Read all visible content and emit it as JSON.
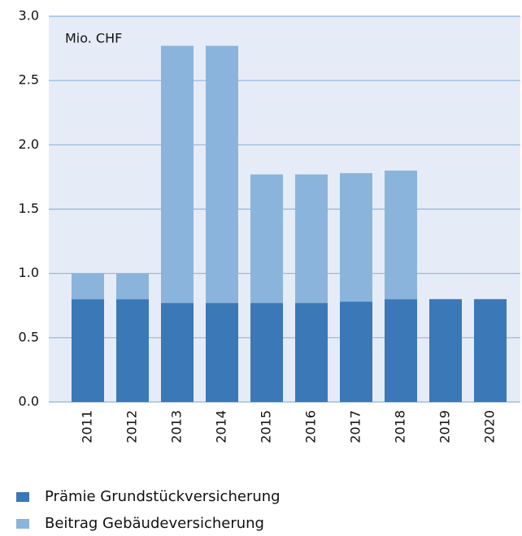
{
  "chart_data": {
    "type": "stacked_bar",
    "annotation": "Mio. CHF",
    "categories": [
      "2011",
      "2012",
      "2013",
      "2014",
      "2015",
      "2016",
      "2017",
      "2018",
      "2019",
      "2020"
    ],
    "series": [
      {
        "name": "Prämie Grundstückversicherung",
        "color": "#3a78b8",
        "values": [
          0.8,
          0.8,
          0.77,
          0.77,
          0.77,
          0.77,
          0.78,
          0.8,
          0.8,
          0.8
        ]
      },
      {
        "name": "Beitrag Gebäudeversicherung",
        "color": "#8ab4dc",
        "values": [
          0.2,
          0.2,
          2.0,
          2.0,
          1.0,
          1.0,
          1.0,
          1.0,
          0,
          0
        ]
      }
    ],
    "ylim": [
      0,
      3
    ],
    "yticks": [
      {
        "value": 0,
        "label": "0.0"
      },
      0.5,
      {
        "value": 1,
        "label": "1.0"
      },
      1.5,
      {
        "value": 2,
        "label": "2.0"
      },
      2.5,
      {
        "value": 3,
        "label": "3.0"
      }
    ],
    "grid": true
  }
}
